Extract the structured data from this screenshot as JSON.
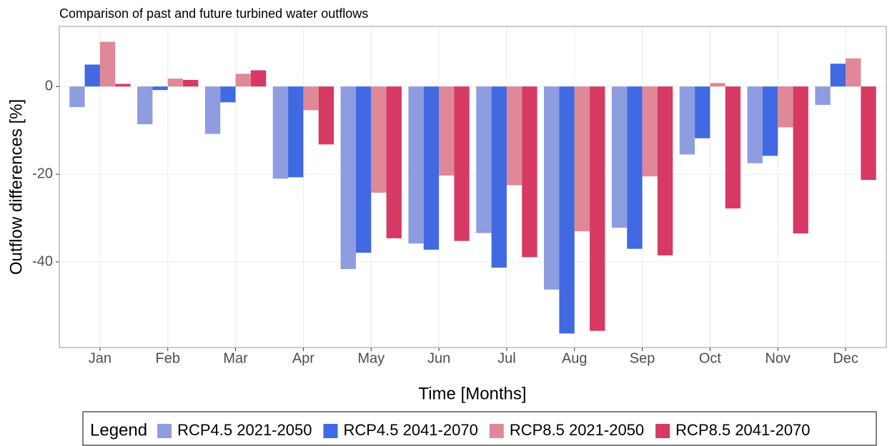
{
  "chart_data": {
    "type": "bar",
    "title": "Comparison of past and future turbined water outflows",
    "x_label": "Time [Months]",
    "y_label": "Outflow differences [%]",
    "legend_title": "Legend",
    "categories": [
      "Jan",
      "Feb",
      "Mar",
      "Apr",
      "May",
      "Jun",
      "Jul",
      "Aug",
      "Sep",
      "Oct",
      "Nov",
      "Dec"
    ],
    "series": [
      {
        "name": "RCP4.5 2021-2050",
        "color": "#8e9de0",
        "values": [
          -4.7,
          -8.6,
          -10.8,
          -21,
          -41.6,
          -35.8,
          -33.4,
          -46.3,
          -32.2,
          -15.5,
          -17.5,
          -4.2
        ]
      },
      {
        "name": "RCP4.5 2041-2070",
        "color": "#4169e1",
        "values": [
          5.0,
          -0.8,
          -3.6,
          -20.7,
          -37.9,
          -37.2,
          -41.3,
          -56.3,
          -37.0,
          -11.8,
          -15.8,
          5.2
        ]
      },
      {
        "name": "RCP8.5 2021-2050",
        "color": "#e08898",
        "values": [
          10.2,
          1.8,
          2.9,
          -5.4,
          -24.2,
          -20.3,
          -22.5,
          -33.0,
          -20.5,
          0.8,
          -9.3,
          6.4
        ]
      },
      {
        "name": "RCP8.5 2041-2070",
        "color": "#d63a64",
        "values": [
          0.6,
          1.5,
          3.7,
          -13.2,
          -34.6,
          -35.2,
          -38.9,
          -55.7,
          -38.5,
          -27.8,
          -33.5,
          -21.3
        ]
      }
    ],
    "ylim": [
      -59.5,
      13.7
    ],
    "yticks": [
      -40,
      -20,
      0
    ],
    "grid": true,
    "legend": "bottom"
  }
}
